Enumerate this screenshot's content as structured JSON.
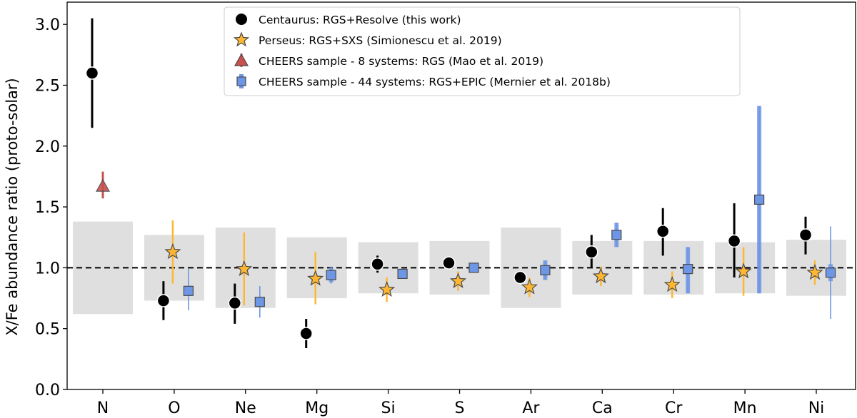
{
  "chart_data": {
    "type": "scatter",
    "title": "",
    "xlabel": "",
    "ylabel": "X/Fe abundance ratio (proto-solar)",
    "ylim": [
      0.0,
      3.2
    ],
    "yticks": [
      "0.0",
      "0.5",
      "1.0",
      "1.5",
      "2.0",
      "2.5",
      "3.0"
    ],
    "categories": [
      "N",
      "O",
      "Ne",
      "Mg",
      "Si",
      "S",
      "Ar",
      "Ca",
      "Cr",
      "Mn",
      "Ni"
    ],
    "reference_line": 1.0,
    "systematic_bands": [
      {
        "element": "N",
        "low": 0.62,
        "high": 1.38
      },
      {
        "element": "O",
        "low": 0.73,
        "high": 1.27
      },
      {
        "element": "Ne",
        "low": 0.67,
        "high": 1.33
      },
      {
        "element": "Mg",
        "low": 0.75,
        "high": 1.25
      },
      {
        "element": "Si",
        "low": 0.79,
        "high": 1.21
      },
      {
        "element": "S",
        "low": 0.78,
        "high": 1.22
      },
      {
        "element": "Ar",
        "low": 0.67,
        "high": 1.33
      },
      {
        "element": "Ca",
        "low": 0.78,
        "high": 1.22
      },
      {
        "element": "Cr",
        "low": 0.78,
        "high": 1.22
      },
      {
        "element": "Mn",
        "low": 0.79,
        "high": 1.21
      },
      {
        "element": "Ni",
        "low": 0.77,
        "high": 1.23
      }
    ],
    "series": [
      {
        "name": "Centaurus: RGS+Resolve (this work)",
        "marker": "circle",
        "color": "#000000",
        "points": [
          {
            "element": "N",
            "value": 2.6,
            "low": 2.15,
            "high": 3.05
          },
          {
            "element": "O",
            "value": 0.73,
            "low": 0.57,
            "high": 0.89
          },
          {
            "element": "Ne",
            "value": 0.71,
            "low": 0.54,
            "high": 0.87
          },
          {
            "element": "Mg",
            "value": 0.46,
            "low": 0.34,
            "high": 0.58
          },
          {
            "element": "Si",
            "value": 1.03,
            "low": 0.96,
            "high": 1.1
          },
          {
            "element": "S",
            "value": 1.04,
            "low": 1.0,
            "high": 1.08
          },
          {
            "element": "Ar",
            "value": 0.92,
            "low": 0.88,
            "high": 0.96
          },
          {
            "element": "Ca",
            "value": 1.13,
            "low": 1.0,
            "high": 1.27
          },
          {
            "element": "Cr",
            "value": 1.3,
            "low": 1.1,
            "high": 1.49
          },
          {
            "element": "Mn",
            "value": 1.22,
            "low": 0.92,
            "high": 1.53
          },
          {
            "element": "Ni",
            "value": 1.27,
            "low": 1.11,
            "high": 1.42
          }
        ]
      },
      {
        "name": "Perseus: RGS+SXS (Simionescu et al. 2019)",
        "marker": "star",
        "color": "#ffb732",
        "points": [
          {
            "element": "O",
            "value": 1.13,
            "low": 0.87,
            "high": 1.39
          },
          {
            "element": "Ne",
            "value": 0.99,
            "low": 0.69,
            "high": 1.29
          },
          {
            "element": "Mg",
            "value": 0.91,
            "low": 0.7,
            "high": 1.13
          },
          {
            "element": "Si",
            "value": 0.82,
            "low": 0.72,
            "high": 0.92
          },
          {
            "element": "S",
            "value": 0.89,
            "low": 0.81,
            "high": 0.97
          },
          {
            "element": "Ar",
            "value": 0.84,
            "low": 0.76,
            "high": 0.92
          },
          {
            "element": "Ca",
            "value": 0.93,
            "low": 0.85,
            "high": 1.01
          },
          {
            "element": "Cr",
            "value": 0.86,
            "low": 0.75,
            "high": 0.97
          },
          {
            "element": "Mn",
            "value": 0.97,
            "low": 0.77,
            "high": 1.17
          },
          {
            "element": "Ni",
            "value": 0.96,
            "low": 0.86,
            "high": 1.06
          }
        ]
      },
      {
        "name": "CHEERS sample - 8 systems: RGS (Mao et al. 2019)",
        "marker": "triangle",
        "color": "#c8504e",
        "points": [
          {
            "element": "N",
            "value": 1.67,
            "low": 1.57,
            "high": 1.79
          }
        ]
      },
      {
        "name": "CHEERS sample - 44 systems: RGS+EPIC (Mernier et al. 2018b)",
        "marker": "square",
        "color": "#6e96e6",
        "points": [
          {
            "element": "O",
            "value": 0.81,
            "low": 0.65,
            "high": 0.99,
            "syslow": 0.77,
            "syshigh": 0.85
          },
          {
            "element": "Ne",
            "value": 0.72,
            "low": 0.59,
            "high": 0.85,
            "syslow": 0.69,
            "syshigh": 0.75
          },
          {
            "element": "Mg",
            "value": 0.94,
            "low": 0.87,
            "high": 1.01,
            "syslow": 0.88,
            "syshigh": 1.0
          },
          {
            "element": "Si",
            "value": 0.95,
            "low": 0.91,
            "high": 0.99,
            "syslow": 0.91,
            "syshigh": 0.99
          },
          {
            "element": "S",
            "value": 1.0,
            "low": 0.97,
            "high": 1.03,
            "syslow": 0.97,
            "syshigh": 1.03
          },
          {
            "element": "Ar",
            "value": 0.98,
            "low": 0.9,
            "high": 1.06,
            "syslow": 0.9,
            "syshigh": 1.06
          },
          {
            "element": "Ca",
            "value": 1.27,
            "low": 1.17,
            "high": 1.37,
            "syslow": 1.17,
            "syshigh": 1.37
          },
          {
            "element": "Cr",
            "value": 0.99,
            "low": 0.79,
            "high": 1.17,
            "syslow": 0.79,
            "syshigh": 1.17
          },
          {
            "element": "Mn",
            "value": 1.56,
            "low": 0.79,
            "high": 2.33,
            "syslow": 0.79,
            "syshigh": 2.33
          },
          {
            "element": "Ni",
            "value": 0.96,
            "low": 0.58,
            "high": 1.34,
            "syslow": 0.89,
            "syshigh": 1.03
          }
        ]
      }
    ],
    "legend_position": "top-center"
  }
}
